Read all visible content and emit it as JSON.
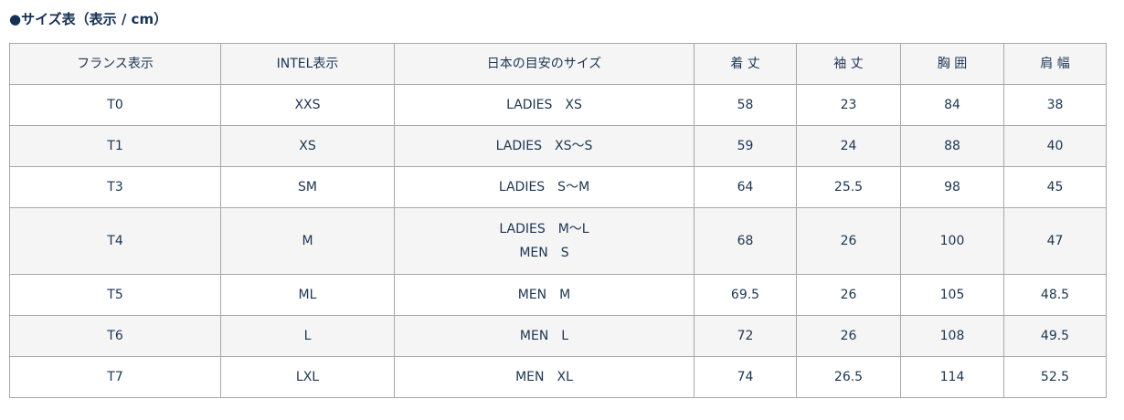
{
  "title": "●サイズ表（表示 / cm）",
  "headers": [
    "フランス表示",
    "INTEL表示",
    "日本の目安のサイズ",
    "着 丈",
    "袖 丈",
    "胸 囲",
    "肩 幅"
  ],
  "rows": [
    [
      "T0",
      "XXS",
      "LADIES　XS",
      "58",
      "23",
      "84",
      "38"
    ],
    [
      "T1",
      "XS",
      "LADIES　XS〜S",
      "59",
      "24",
      "88",
      "40"
    ],
    [
      "T3",
      "SM",
      "LADIES　S〜M",
      "64",
      "25.5",
      "98",
      "45"
    ],
    [
      "T4",
      "M",
      "LADIES　M〜L\nMEN　S",
      "68",
      "26",
      "100",
      "47"
    ],
    [
      "T5",
      "ML",
      "MEN　M",
      "69.5",
      "26",
      "105",
      "48.5"
    ],
    [
      "T6",
      "L",
      "MEN　L",
      "72",
      "26",
      "108",
      "49.5"
    ],
    [
      "T7",
      "LXL",
      "MEN　XL",
      "74",
      "26.5",
      "114",
      "52.5"
    ]
  ]
}
